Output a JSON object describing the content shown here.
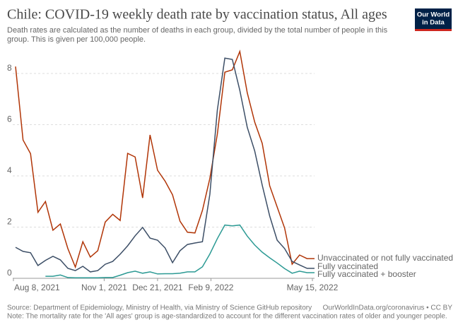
{
  "chart_data": {
    "type": "line",
    "title": "Chile: COVID-19 weekly death rate by vaccination status, All ages",
    "subtitle": [
      "Death rates are calculated as the number of deaths in each group, divided by the total number of people in this",
      "group. This is given per 100,000 people."
    ],
    "logo": [
      "Our World",
      "in Data"
    ],
    "source": "Source: Department of Epidemiology, Ministry of Health, via Ministry of Science GitHub repository",
    "url": "OurWorldInData.org/coronavirus • CC BY",
    "note": "Note: The mortality rate for the 'All ages' group is age-standardized to account for the different vaccination rates of older and younger people.",
    "x": [
      "2021-08-10",
      "2021-08-17",
      "2021-08-24",
      "2021-08-31",
      "2021-09-07",
      "2021-09-14",
      "2021-09-21",
      "2021-09-28",
      "2021-10-05",
      "2021-10-12",
      "2021-10-19",
      "2021-10-26",
      "2021-11-02",
      "2021-11-09",
      "2021-11-16",
      "2021-11-23",
      "2021-11-30",
      "2021-12-07",
      "2021-12-14",
      "2021-12-21",
      "2021-12-28",
      "2022-01-04",
      "2022-01-11",
      "2022-01-18",
      "2022-01-25",
      "2022-02-01",
      "2022-02-08",
      "2022-02-15",
      "2022-02-22",
      "2022-03-01",
      "2022-03-08",
      "2022-03-15",
      "2022-03-22",
      "2022-03-29",
      "2022-04-05",
      "2022-04-12",
      "2022-04-19",
      "2022-04-26",
      "2022-05-03",
      "2022-05-10",
      "2022-05-17"
    ],
    "series": [
      {
        "name": "Unvaccinated or not fully vaccinated",
        "color": "#b13507",
        "values": [
          8.27,
          5.4,
          4.87,
          2.58,
          3.0,
          1.88,
          2.12,
          1.16,
          0.44,
          1.43,
          0.83,
          1.08,
          2.2,
          2.5,
          2.26,
          4.88,
          4.74,
          3.14,
          5.6,
          4.22,
          3.8,
          3.26,
          2.23,
          1.8,
          1.77,
          2.65,
          3.9,
          5.63,
          8.05,
          8.14,
          8.86,
          7.25,
          6.1,
          5.27,
          3.61,
          2.79,
          1.96,
          0.55,
          0.91,
          0.77,
          0.77
        ]
      },
      {
        "name": "Fully vaccinated",
        "color": "#3c4e66",
        "values": [
          1.21,
          1.05,
          1.0,
          0.5,
          0.7,
          0.86,
          0.72,
          0.39,
          0.3,
          0.47,
          0.25,
          0.3,
          0.55,
          0.66,
          0.94,
          1.27,
          1.66,
          1.99,
          1.57,
          1.49,
          1.19,
          0.61,
          1.08,
          1.32,
          1.38,
          1.43,
          3.28,
          6.57,
          8.6,
          8.55,
          7.34,
          5.9,
          4.97,
          3.64,
          2.43,
          1.49,
          1.16,
          0.66,
          0.52,
          0.39,
          0.39
        ]
      },
      {
        "name": "Fully vaccinated + booster",
        "color": "#2c9a94",
        "values": [
          null,
          null,
          null,
          null,
          0.08,
          0.08,
          0.13,
          0.03,
          0.02,
          0.02,
          0.02,
          0.02,
          0.03,
          0.03,
          0.12,
          0.22,
          0.28,
          0.2,
          0.25,
          0.17,
          0.18,
          0.18,
          0.2,
          0.25,
          0.25,
          0.45,
          0.95,
          1.55,
          2.08,
          2.05,
          2.08,
          1.65,
          1.3,
          1.02,
          0.8,
          0.6,
          0.38,
          0.2,
          0.28,
          0.22,
          0.22
        ]
      }
    ],
    "xlim": [
      "2021-08-10",
      "2022-05-17"
    ],
    "xticks": [
      {
        "value": "2021-08-08",
        "label": "Aug 8, 2021"
      },
      {
        "value": "2021-11-01",
        "label": "Nov 1, 2021"
      },
      {
        "value": "2021-12-21",
        "label": "Dec 21, 2021"
      },
      {
        "value": "2022-02-09",
        "label": "Feb 9, 2022"
      },
      {
        "value": "2022-05-15",
        "label": "May 15, 2022"
      }
    ],
    "ylim": [
      0,
      9
    ],
    "yticks": [
      0,
      2,
      4,
      6,
      8
    ],
    "grid": true
  }
}
